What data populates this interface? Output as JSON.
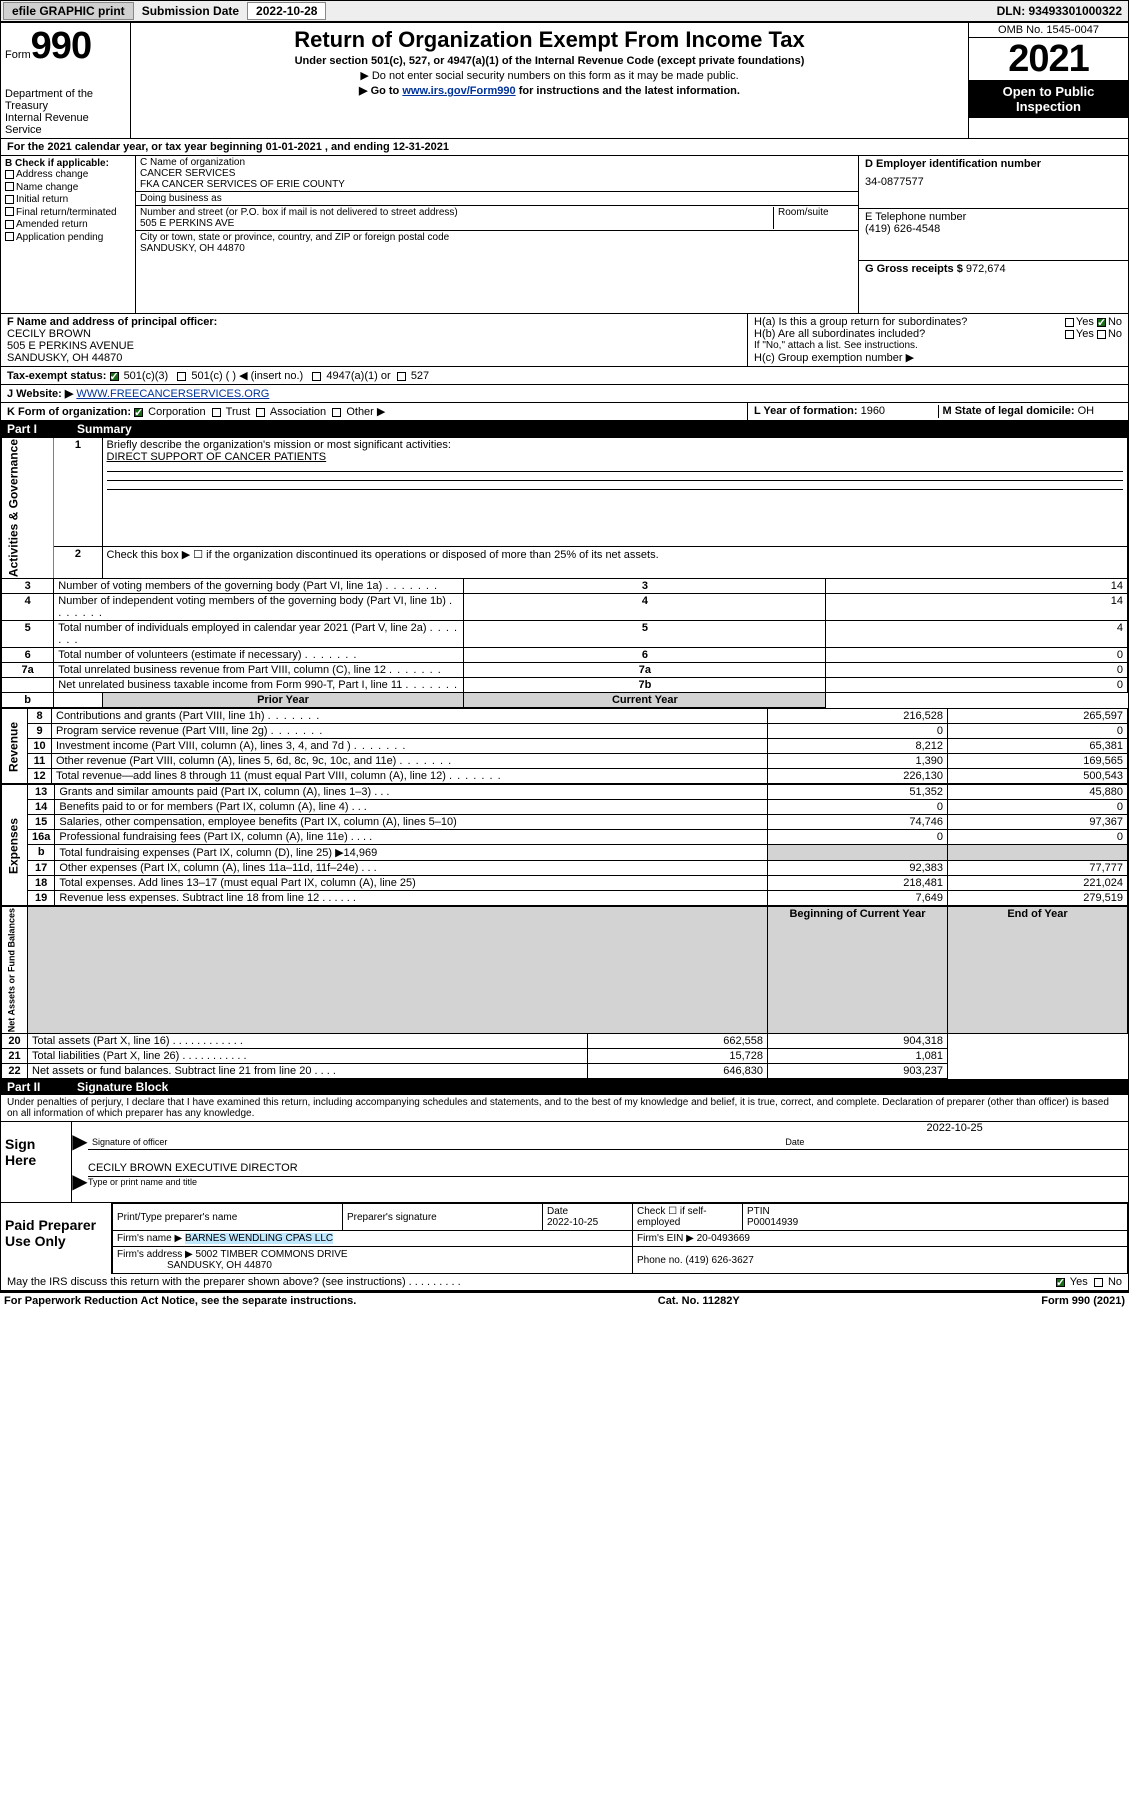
{
  "topbar": {
    "efile": "efile GRAPHIC print",
    "sub_lbl": "Submission Date",
    "sub_date": "2022-10-28",
    "dln": "DLN: 93493301000322"
  },
  "head": {
    "form_word": "Form",
    "form_no": "990",
    "dept": "Department of the Treasury",
    "irs": "Internal Revenue Service",
    "title": "Return of Organization Exempt From Income Tax",
    "sub": "Under section 501(c), 527, or 4947(a)(1) of the Internal Revenue Code (except private foundations)",
    "note1": "▶ Do not enter social security numbers on this form as it may be made public.",
    "note2_pre": "▶ Go to ",
    "note2_link": "www.irs.gov/Form990",
    "note2_post": " for instructions and the latest information.",
    "omb": "OMB No. 1545-0047",
    "year": "2021",
    "open": "Open to Public Inspection"
  },
  "period": "For the 2021 calendar year, or tax year beginning 01-01-2021   , and ending 12-31-2021",
  "B": {
    "hdr": "B Check if applicable:",
    "opts": [
      "Address change",
      "Name change",
      "Initial return",
      "Final return/terminated",
      "Amended return",
      "Application pending"
    ]
  },
  "C": {
    "name_lbl": "C Name of organization",
    "name1": "CANCER SERVICES",
    "name2": "FKA CANCER SERVICES OF ERIE COUNTY",
    "dba_lbl": "Doing business as",
    "addr_lbl": "Number and street (or P.O. box if mail is not delivered to street address)",
    "room_lbl": "Room/suite",
    "addr": "505 E PERKINS AVE",
    "city_lbl": "City or town, state or province, country, and ZIP or foreign postal code",
    "city": "SANDUSKY, OH  44870"
  },
  "D": {
    "lbl": "D Employer identification number",
    "val": "34-0877577"
  },
  "E": {
    "lbl": "E Telephone number",
    "val": "(419) 626-4548"
  },
  "G": {
    "lbl": "G Gross receipts $",
    "val": "972,674"
  },
  "F": {
    "lbl": "F  Name and address of principal officer:",
    "line1": "CECILY BROWN",
    "line2": "505 E PERKINS AVENUE",
    "line3": "SANDUSKY, OH  44870"
  },
  "H": {
    "a_lbl": "H(a)  Is this a group return for subordinates?",
    "b_lbl": "H(b)  Are all subordinates included?",
    "b_note": "If \"No,\" attach a list. See instructions.",
    "c_lbl": "H(c)  Group exemption number ▶",
    "yes": "Yes",
    "no": "No"
  },
  "I": {
    "lbl": "Tax-exempt status:",
    "o1": "501(c)(3)",
    "o2": "501(c) (  ) ◀ (insert no.)",
    "o3": "4947(a)(1) or",
    "o4": "527"
  },
  "J": {
    "lbl": "J   Website: ▶",
    "val": "WWW.FREECANCERSERVICES.ORG"
  },
  "K": {
    "lbl": "K Form of organization:",
    "o1": "Corporation",
    "o2": "Trust",
    "o3": "Association",
    "o4": "Other ▶"
  },
  "L": {
    "lbl": "L Year of formation:",
    "val": "1960"
  },
  "M": {
    "lbl": "M State of legal domicile:",
    "val": "OH"
  },
  "part1": {
    "num": "Part I",
    "title": "Summary"
  },
  "summary": {
    "q1": "Briefly describe the organization's mission or most significant activities:",
    "q1v": "DIRECT SUPPORT OF CANCER PATIENTS",
    "q2": "Check this box ▶ ☐  if the organization discontinued its operations or disposed of more than 25% of its net assets.",
    "rows": [
      {
        "n": "3",
        "t": "Number of voting members of the governing body (Part VI, line 1a)",
        "rn": "3",
        "v": "14"
      },
      {
        "n": "4",
        "t": "Number of independent voting members of the governing body (Part VI, line 1b)",
        "rn": "4",
        "v": "14"
      },
      {
        "n": "5",
        "t": "Total number of individuals employed in calendar year 2021 (Part V, line 2a)",
        "rn": "5",
        "v": "4"
      },
      {
        "n": "6",
        "t": "Total number of volunteers (estimate if necessary)",
        "rn": "6",
        "v": "0"
      },
      {
        "n": "7a",
        "t": "Total unrelated business revenue from Part VIII, column (C), line 12",
        "rn": "7a",
        "v": "0"
      },
      {
        "n": "",
        "t": "Net unrelated business taxable income from Form 990-T, Part I, line 11",
        "rn": "7b",
        "v": "0"
      }
    ],
    "gridhdr": {
      "pa": "Prior Year",
      "cb": "Current Year"
    },
    "revenue": [
      {
        "n": "8",
        "t": "Contributions and grants (Part VIII, line 1h)",
        "p": "216,528",
        "c": "265,597"
      },
      {
        "n": "9",
        "t": "Program service revenue (Part VIII, line 2g)",
        "p": "0",
        "c": "0"
      },
      {
        "n": "10",
        "t": "Investment income (Part VIII, column (A), lines 3, 4, and 7d )",
        "p": "8,212",
        "c": "65,381"
      },
      {
        "n": "11",
        "t": "Other revenue (Part VIII, column (A), lines 5, 6d, 8c, 9c, 10c, and 11e)",
        "p": "1,390",
        "c": "169,565"
      },
      {
        "n": "12",
        "t": "Total revenue—add lines 8 through 11 (must equal Part VIII, column (A), line 12)",
        "p": "226,130",
        "c": "500,543"
      }
    ],
    "expenses": [
      {
        "n": "13",
        "t": "Grants and similar amounts paid (Part IX, column (A), lines 1–3)  .   .   .",
        "p": "51,352",
        "c": "45,880"
      },
      {
        "n": "14",
        "t": "Benefits paid to or for members (Part IX, column (A), line 4)  .   .   .",
        "p": "0",
        "c": "0"
      },
      {
        "n": "15",
        "t": "Salaries, other compensation, employee benefits (Part IX, column (A), lines 5–10)",
        "p": "74,746",
        "c": "97,367"
      },
      {
        "n": "16a",
        "t": "Professional fundraising fees (Part IX, column (A), line 11e)  .   .   .   .",
        "p": "0",
        "c": "0"
      },
      {
        "n": "b",
        "t": "Total fundraising expenses (Part IX, column (D), line 25) ▶14,969",
        "p": "",
        "c": "",
        "shade": true
      },
      {
        "n": "17",
        "t": "Other expenses (Part IX, column (A), lines 11a–11d, 11f–24e)  .   .   .",
        "p": "92,383",
        "c": "77,777"
      },
      {
        "n": "18",
        "t": "Total expenses. Add lines 13–17 (must equal Part IX, column (A), line 25)",
        "p": "218,481",
        "c": "221,024"
      },
      {
        "n": "19",
        "t": "Revenue less expenses. Subtract line 18 from line 12  .   .   .   .   .   .",
        "p": "7,649",
        "c": "279,519"
      }
    ],
    "nahdr": {
      "b": "Beginning of Current Year",
      "e": "End of Year"
    },
    "netassets": [
      {
        "n": "20",
        "t": "Total assets (Part X, line 16)  .   .   .   .   .   .   .   .   .   .   .   .",
        "p": "662,558",
        "c": "904,318"
      },
      {
        "n": "21",
        "t": "Total liabilities (Part X, line 26)  .   .   .   .   .   .   .   .   .   .   .",
        "p": "15,728",
        "c": "1,081"
      },
      {
        "n": "22",
        "t": "Net assets or fund balances. Subtract line 21 from line 20  .   .   .   .",
        "p": "646,830",
        "c": "903,237"
      }
    ],
    "sidelabels": {
      "gov": "Activities & Governance",
      "rev": "Revenue",
      "exp": "Expenses",
      "na": "Net Assets or Fund Balances"
    }
  },
  "part2": {
    "num": "Part II",
    "title": "Signature Block"
  },
  "sigtext": "Under penalties of perjury, I declare that I have examined this return, including accompanying schedules and statements, and to the best of my knowledge and belief, it is true, correct, and complete. Declaration of preparer (other than officer) is based on all information of which preparer has any knowledge.",
  "sign": {
    "here": "Sign Here",
    "off_lbl": "Signature of officer",
    "date_lbl": "Date",
    "off_date": "2022-10-25",
    "name": "CECILY BROWN  EXECUTIVE DIRECTOR",
    "name_lbl": "Type or print name and title"
  },
  "prep": {
    "hdr": "Paid Preparer Use Only",
    "h1": "Print/Type preparer's name",
    "h2": "Preparer's signature",
    "h3": "Date",
    "h3v": "2022-10-25",
    "h4": "Check ☐ if self-employed",
    "h5": "PTIN",
    "h5v": "P00014939",
    "firm_lbl": "Firm's name   ▶",
    "firm": "BARNES WENDLING CPAS LLC",
    "ein_lbl": "Firm's EIN ▶",
    "ein": "20-0493669",
    "addr_lbl": "Firm's address ▶",
    "addr1": "5002 TIMBER COMMONS DRIVE",
    "addr2": "SANDUSKY, OH  44870",
    "phone_lbl": "Phone no.",
    "phone": "(419) 626-3627"
  },
  "discuss": {
    "q": "May the IRS discuss this return with the preparer shown above? (see instructions)  .   .   .   .   .   .   .   .   .",
    "yes": "Yes",
    "no": "No"
  },
  "foot": {
    "pra": "For Paperwork Reduction Act Notice, see the separate instructions.",
    "cat": "Cat. No. 11282Y",
    "form": "Form 990 (2021)"
  }
}
